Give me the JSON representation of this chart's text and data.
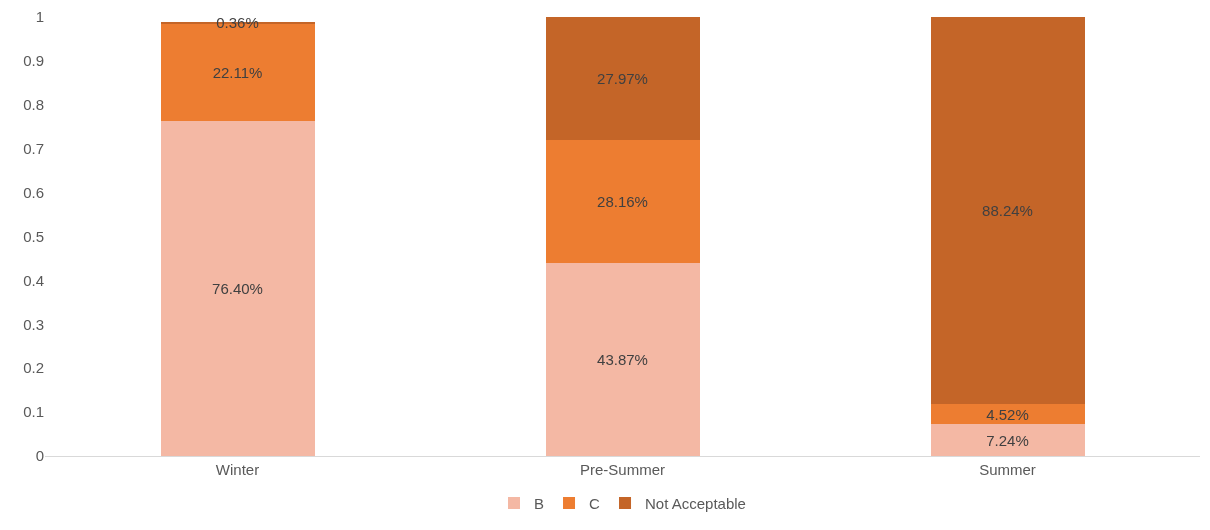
{
  "chart_data": {
    "type": "bar",
    "stacked": true,
    "categories": [
      "Winter",
      "Pre-Summer",
      "Summer"
    ],
    "series": [
      {
        "name": "B",
        "color": "#f4b8a4",
        "values": [
          0.764,
          0.4387,
          0.0724
        ],
        "value_labels": [
          "76.40%",
          "43.87%",
          "7.24%"
        ]
      },
      {
        "name": "C",
        "color": "#ed7d31",
        "values": [
          0.2211,
          0.2816,
          0.0452
        ],
        "value_labels": [
          "22.11%",
          "28.16%",
          "4.52%"
        ]
      },
      {
        "name": "Not Acceptable",
        "color": "#c46528",
        "values": [
          0.0036,
          0.2797,
          0.8824
        ],
        "value_labels": [
          "0.36%",
          "27.97%",
          "88.24%"
        ]
      }
    ],
    "ylim": [
      0,
      1
    ],
    "yticks": [
      0,
      0.1,
      0.2,
      0.3,
      0.4,
      0.5,
      0.6,
      0.7,
      0.8,
      0.9,
      1
    ],
    "grid": false,
    "legend": "bottom"
  }
}
